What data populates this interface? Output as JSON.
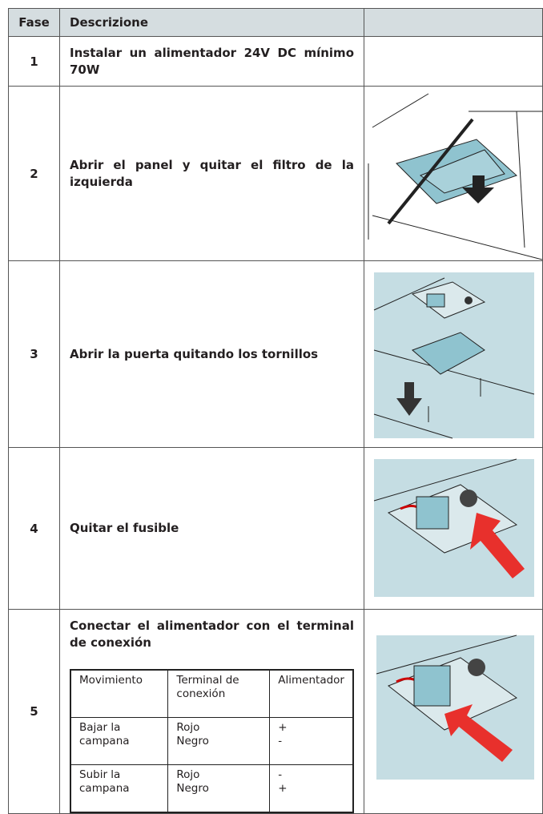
{
  "table": {
    "header": [
      "Fase",
      "Descrizione"
    ],
    "rows": [
      {
        "fase": "1",
        "descrizione": "Instalar un alimentador 24V DC mínimo 70W"
      },
      {
        "fase": "2",
        "descrizione": "Abrir el panel y quitar el filtro de la izquierda"
      },
      {
        "fase": "3",
        "descrizione": "Abrir la puerta quitando los tornillos"
      },
      {
        "fase": "4",
        "descrizione": "Quitar el fusible"
      },
      {
        "fase": "5",
        "descrizione": "Conectar el alimentador con el terminal de conexión"
      }
    ],
    "subtable": {
      "header": [
        "Movimiento",
        "Terminal de conexión",
        "Alimentador"
      ],
      "rows": [
        [
          [
            "Bajar la campana"
          ],
          [
            "Rojo",
            "Negro"
          ],
          [
            "+",
            "-"
          ]
        ],
        [
          [
            "Subir la campana"
          ],
          [
            "Rojo",
            "Negro"
          ],
          [
            "-",
            "+"
          ]
        ]
      ]
    }
  }
}
